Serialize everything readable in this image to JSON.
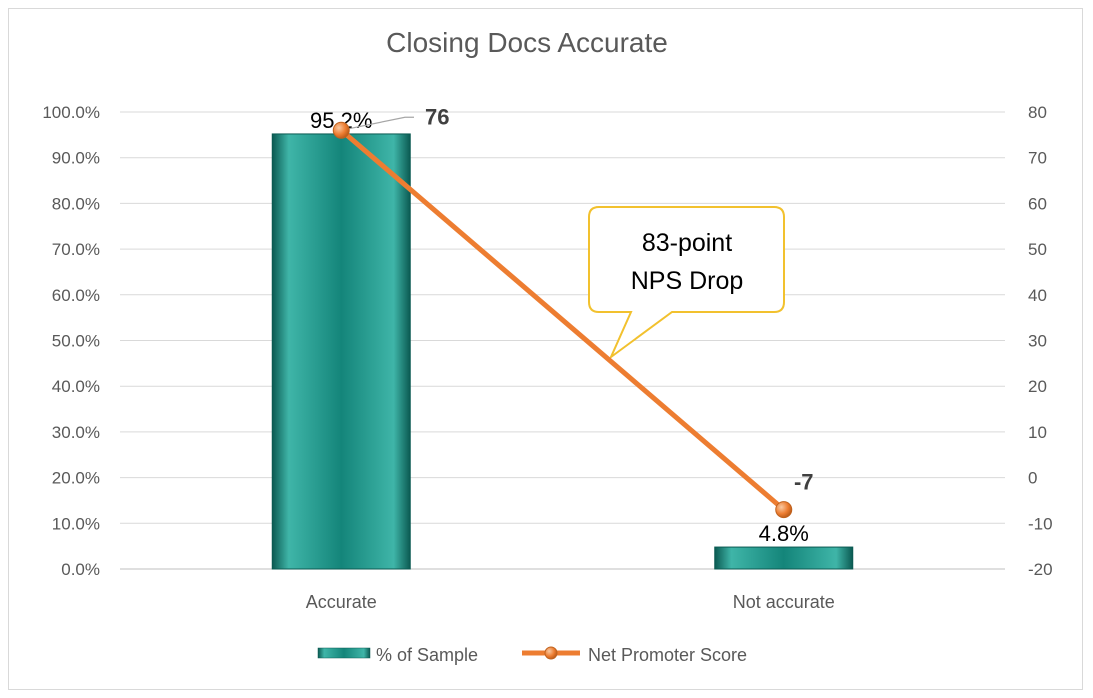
{
  "chart_data": {
    "type": "bar",
    "title": "Closing Docs Accurate",
    "categories": [
      "Accurate",
      "Not accurate"
    ],
    "series": [
      {
        "name": "% of Sample",
        "type": "bar",
        "axis": "left",
        "values": [
          95.2,
          4.8
        ],
        "labels": [
          "95.2%",
          "4.8%"
        ]
      },
      {
        "name": "Net Promoter Score",
        "type": "line",
        "axis": "right",
        "values": [
          76,
          -7
        ],
        "labels": [
          "76",
          "-7"
        ]
      }
    ],
    "y_left": {
      "range": [
        0,
        100
      ],
      "ticks": [
        "0.0%",
        "10.0%",
        "20.0%",
        "30.0%",
        "40.0%",
        "50.0%",
        "60.0%",
        "70.0%",
        "80.0%",
        "90.0%",
        "100.0%"
      ]
    },
    "y_right": {
      "range": [
        -20,
        80
      ],
      "ticks": [
        "-20",
        "-10",
        "0",
        "10",
        "20",
        "30",
        "40",
        "50",
        "60",
        "70",
        "80"
      ]
    },
    "annotation": {
      "lines": [
        "83-point",
        "NPS Drop"
      ]
    },
    "grid": true,
    "legend_position": "bottom",
    "colors": {
      "bar": "#14857A",
      "bar_light": "#3FB5A8",
      "bar_dark": "#0B5A52",
      "line": "#ED7D31",
      "grid": "#d9d9d9",
      "callout_border": "#F2C12E"
    }
  }
}
